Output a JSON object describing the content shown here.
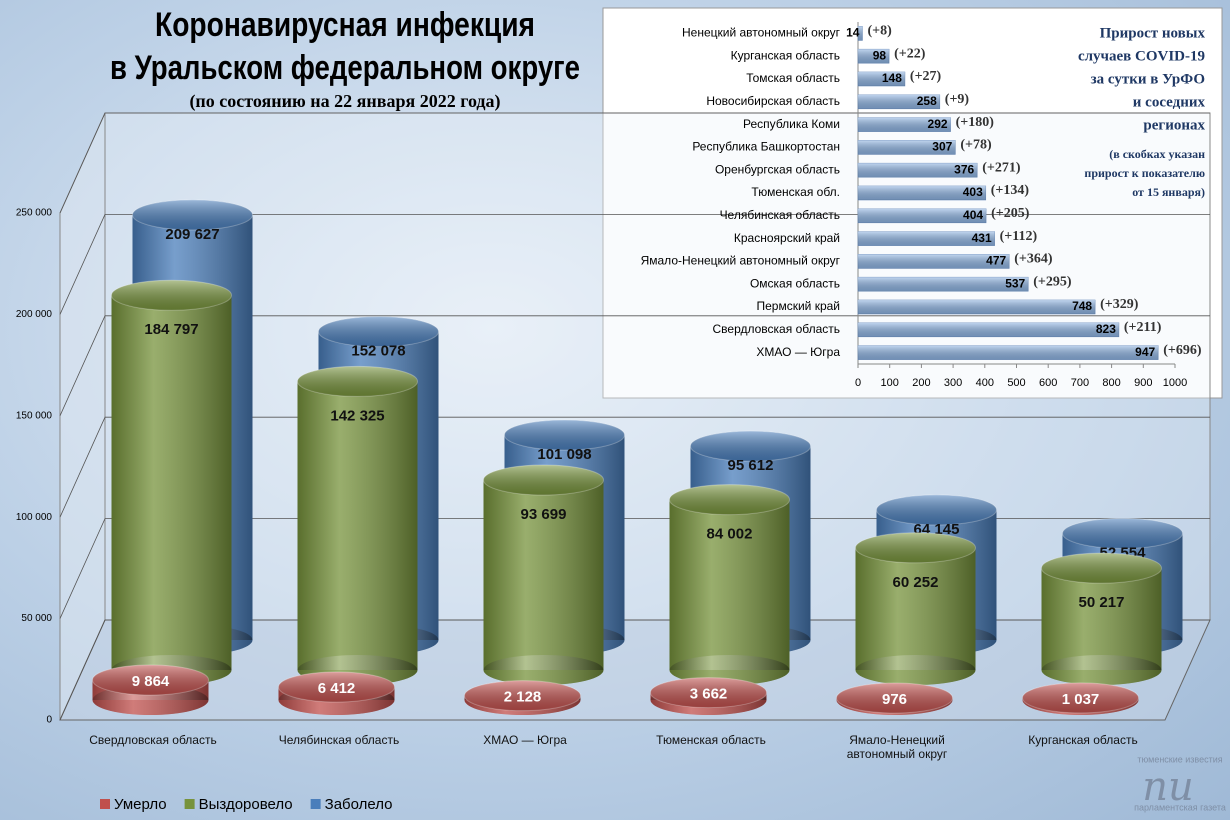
{
  "header": {
    "title_lines": [
      "Коронавирусная инфекция",
      "в Уральском федеральном округе"
    ],
    "subtitle": "(по состоянию на 22 января 2022 года)"
  },
  "chart_data": [
    {
      "type": "cylinder-bar",
      "categories": [
        "Свердловская область",
        "Челябинская область",
        "ХМАО — Югра",
        "Тюменская область",
        "Ямало-Ненецкий автономный округ",
        "Курганская область"
      ],
      "series": [
        {
          "name": "Умерло",
          "color": "#c0504d",
          "values": [
            9864,
            6412,
            2128,
            3662,
            976,
            1037
          ],
          "value_labels": [
            "9 864",
            "6 412",
            "2 128",
            "3 662",
            "976",
            "1 037"
          ]
        },
        {
          "name": "Выздоровело",
          "color": "#77933c",
          "values": [
            184797,
            142325,
            93699,
            84002,
            60252,
            50217
          ],
          "value_labels": [
            "184 797",
            "142 325",
            "93 699",
            "84 002",
            "60 252",
            "50 217"
          ]
        },
        {
          "name": "Заболело",
          "color": "#4a7ebb",
          "values": [
            209627,
            152078,
            101098,
            95612,
            64145,
            52554
          ],
          "value_labels": [
            "209 627",
            "152 078",
            "101 098",
            "95 612",
            "64 145",
            "52 554"
          ]
        }
      ],
      "ylim": [
        0,
        250000
      ],
      "yticks": [
        0,
        {
          "value": 50000,
          "label": "50 000"
        },
        {
          "value": 100000,
          "label": "100 000"
        },
        {
          "value": 150000,
          "label": "150 000"
        },
        {
          "value": 200000,
          "label": "200 000"
        },
        {
          "value": 250000,
          "label": "250 000"
        }
      ],
      "grid": true,
      "legend": "bottom-left"
    },
    {
      "type": "hbar",
      "title_lines": [
        "Прирост новых",
        "случаев COVID-19",
        "за сутки в УрФО",
        "и соседних",
        "регионах"
      ],
      "note_lines": [
        "(в скобках указан",
        "прирост к показателю",
        "от 15 января)"
      ],
      "categories": [
        "Ненецкий автономный округ",
        "Курганская область",
        "Томская область",
        "Новосибирская область",
        "Республика Коми",
        "Республика Башкортостан",
        "Оренбургская область",
        "Тюменская обл.",
        "Челябинская область",
        "Красноярский край",
        "Ямало-Ненецкий автономный округ",
        "Омская область",
        "Пермский край",
        "Свердловская область",
        "ХМАО — Югра"
      ],
      "values": [
        14,
        98,
        148,
        258,
        292,
        307,
        376,
        403,
        404,
        431,
        477,
        537,
        748,
        823,
        947
      ],
      "color": "#8eb4e3",
      "increases": {
        "values": [
          8,
          22,
          27,
          9,
          180,
          78,
          271,
          134,
          205,
          112,
          364,
          295,
          329,
          211,
          696
        ],
        "value_labels": [
          "(+8)",
          "(+22)",
          "(+27)",
          "(+9)",
          "(+180)",
          "(+78)",
          "(+271)",
          "(+134)",
          "(+205)",
          "(+112)",
          "(+364)",
          "(+295)",
          "(+329)",
          "(+211)",
          "(+696)"
        ]
      },
      "xlim": [
        0,
        1000
      ],
      "xticks": [
        0,
        100,
        200,
        300,
        400,
        500,
        600,
        700,
        800,
        900,
        1000
      ]
    }
  ],
  "logo": {
    "top": "тюменские известия",
    "mark": "пи",
    "bottom": "парламентская газета"
  }
}
